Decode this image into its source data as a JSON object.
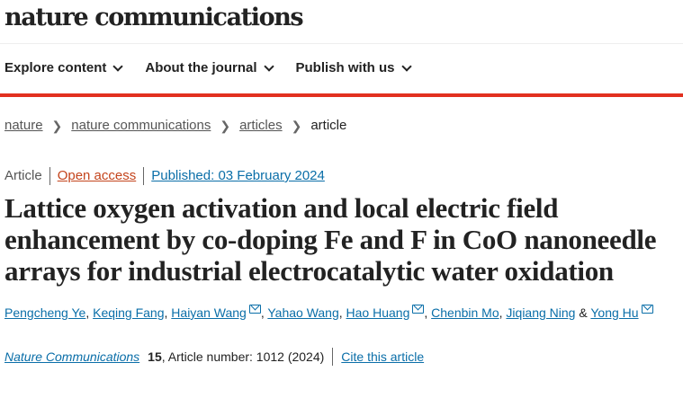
{
  "header": {
    "logo": "nature communications"
  },
  "nav": [
    {
      "label": "Explore content"
    },
    {
      "label": "About the journal"
    },
    {
      "label": "Publish with us"
    }
  ],
  "breadcrumb": [
    {
      "label": "nature",
      "link": true
    },
    {
      "label": "nature communications",
      "link": true
    },
    {
      "label": "articles",
      "link": true
    },
    {
      "label": "article",
      "link": false
    }
  ],
  "meta": {
    "type": "Article",
    "access": "Open access",
    "published": "Published: 03 February 2024"
  },
  "title": "Lattice oxygen activation and local electric field enhancement by co-doping Fe and F in CoO nanoneedle arrays for industrial electrocatalytic water oxidation",
  "authors": [
    {
      "name": "Pengcheng Ye",
      "email": false
    },
    {
      "name": "Keqing Fang",
      "email": false
    },
    {
      "name": "Haiyan Wang",
      "email": true
    },
    {
      "name": "Yahao Wang",
      "email": false
    },
    {
      "name": "Hao Huang",
      "email": true
    },
    {
      "name": "Chenbin Mo",
      "email": false
    },
    {
      "name": "Jiqiang Ning",
      "email": false
    },
    {
      "name": "Yong Hu",
      "email": true
    }
  ],
  "citation": {
    "journal": "Nature Communications",
    "volume": "15",
    "article_number": ", Article number: 1012 (2024)",
    "cite_label": "Cite this article"
  }
}
